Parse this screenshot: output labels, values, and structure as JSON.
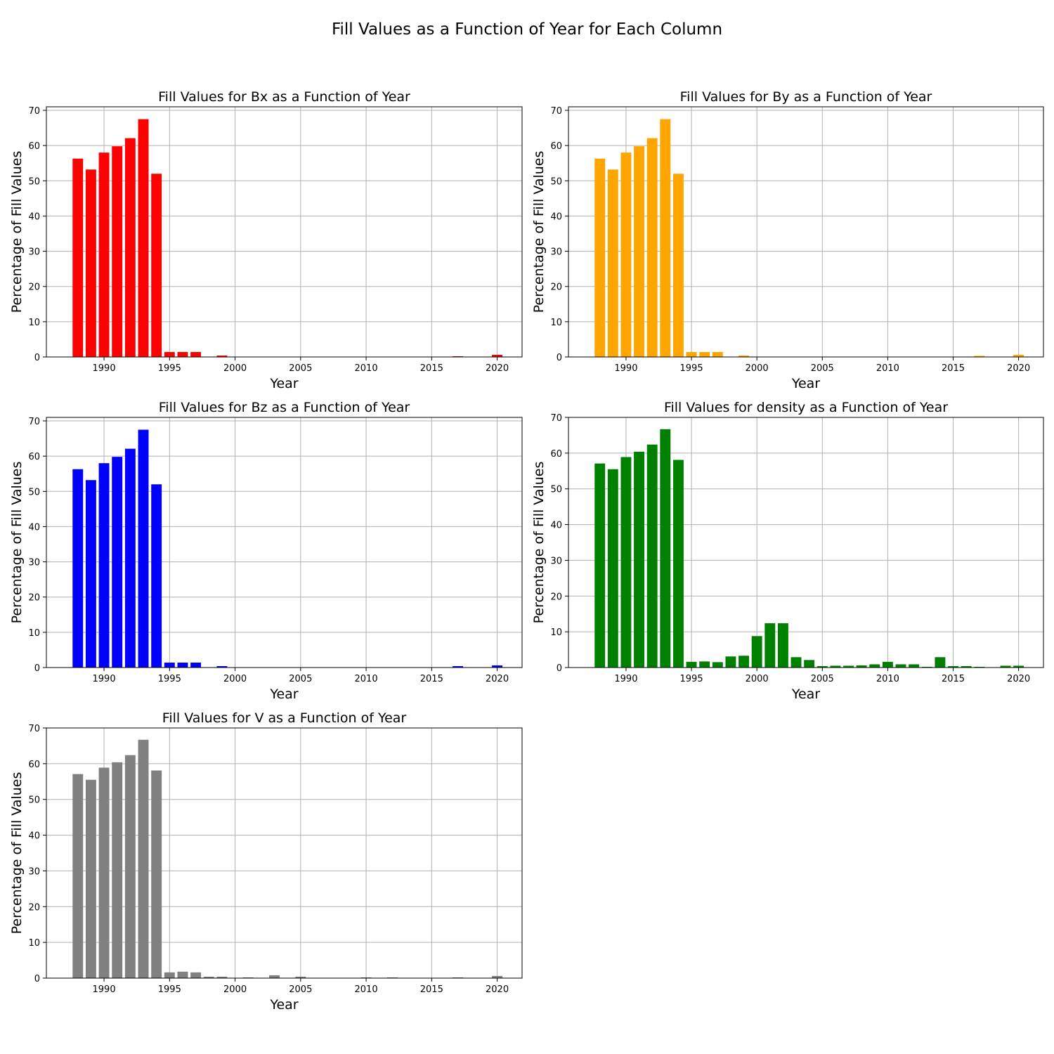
{
  "figure": {
    "suptitle": "Fill Values as a Function of Year for Each Column"
  },
  "chart_data": [
    {
      "type": "bar",
      "title": "Fill Values for Bx as a Function of Year",
      "xlabel": "Year",
      "ylabel": "Percentage of Fill Values",
      "xlim": [
        1985.6,
        2021.9
      ],
      "ylim": [
        0,
        71
      ],
      "xticks": [
        1990,
        1995,
        2000,
        2005,
        2010,
        2015,
        2020
      ],
      "yticks": [
        0,
        10,
        20,
        30,
        40,
        50,
        60,
        70
      ],
      "grid": true,
      "color": "#ff0000",
      "series": [
        {
          "x": [
            1988,
            1989,
            1990,
            1991,
            1992,
            1993,
            1994,
            1995,
            1996,
            1997,
            1999,
            2017,
            2020
          ],
          "values": [
            56.3,
            53.2,
            58.0,
            59.8,
            62.1,
            67.5,
            52.0,
            1.4,
            1.4,
            1.4,
            0.4,
            0.2,
            0.6
          ]
        }
      ]
    },
    {
      "type": "bar",
      "title": "Fill Values for By as a Function of Year",
      "xlabel": "Year",
      "ylabel": "Percentage of Fill Values",
      "xlim": [
        1985.6,
        2021.9
      ],
      "ylim": [
        0,
        71
      ],
      "xticks": [
        1990,
        1995,
        2000,
        2005,
        2010,
        2015,
        2020
      ],
      "yticks": [
        0,
        10,
        20,
        30,
        40,
        50,
        60,
        70
      ],
      "grid": true,
      "color": "#ffa500",
      "series": [
        {
          "x": [
            1988,
            1989,
            1990,
            1991,
            1992,
            1993,
            1994,
            1995,
            1996,
            1997,
            1999,
            2017,
            2020
          ],
          "values": [
            56.3,
            53.2,
            58.0,
            59.8,
            62.1,
            67.5,
            52.0,
            1.4,
            1.4,
            1.4,
            0.4,
            0.3,
            0.6
          ]
        }
      ]
    },
    {
      "type": "bar",
      "title": "Fill Values for Bz as a Function of Year",
      "xlabel": "Year",
      "ylabel": "Percentage of Fill Values",
      "xlim": [
        1985.6,
        2021.9
      ],
      "ylim": [
        0,
        71
      ],
      "xticks": [
        1990,
        1995,
        2000,
        2005,
        2010,
        2015,
        2020
      ],
      "yticks": [
        0,
        10,
        20,
        30,
        40,
        50,
        60,
        70
      ],
      "grid": true,
      "color": "#0000ff",
      "series": [
        {
          "x": [
            1988,
            1989,
            1990,
            1991,
            1992,
            1993,
            1994,
            1995,
            1996,
            1997,
            1999,
            2017,
            2020
          ],
          "values": [
            56.3,
            53.2,
            58.0,
            59.8,
            62.1,
            67.5,
            52.0,
            1.4,
            1.4,
            1.4,
            0.4,
            0.4,
            0.6
          ]
        }
      ]
    },
    {
      "type": "bar",
      "title": "Fill Values for density as a Function of Year",
      "xlabel": "Year",
      "ylabel": "Percentage of Fill Values",
      "xlim": [
        1985.6,
        2021.9
      ],
      "ylim": [
        0,
        70
      ],
      "xticks": [
        1990,
        1995,
        2000,
        2005,
        2010,
        2015,
        2020
      ],
      "yticks": [
        0,
        10,
        20,
        30,
        40,
        50,
        60,
        70
      ],
      "grid": true,
      "color": "#008000",
      "series": [
        {
          "x": [
            1988,
            1989,
            1990,
            1991,
            1992,
            1993,
            1994,
            1995,
            1996,
            1997,
            1998,
            1999,
            2000,
            2001,
            2002,
            2003,
            2004,
            2005,
            2006,
            2007,
            2008,
            2009,
            2010,
            2011,
            2012,
            2013,
            2014,
            2015,
            2016,
            2017,
            2019,
            2020
          ],
          "values": [
            57.1,
            55.5,
            58.9,
            60.4,
            62.4,
            66.7,
            58.1,
            1.6,
            1.7,
            1.5,
            3.1,
            3.3,
            8.8,
            12.4,
            12.4,
            2.9,
            2.1,
            0.4,
            0.5,
            0.5,
            0.6,
            0.9,
            1.6,
            0.9,
            0.9,
            0.2,
            2.9,
            0.4,
            0.4,
            0.2,
            0.5,
            0.5
          ]
        }
      ]
    },
    {
      "type": "bar",
      "title": "Fill Values for V as a Function of Year",
      "xlabel": "Year",
      "ylabel": "Percentage of Fill Values",
      "xlim": [
        1985.6,
        2021.9
      ],
      "ylim": [
        0,
        70
      ],
      "xticks": [
        1990,
        1995,
        2000,
        2005,
        2010,
        2015,
        2020
      ],
      "yticks": [
        0,
        10,
        20,
        30,
        40,
        50,
        60,
        70
      ],
      "grid": true,
      "color": "#808080",
      "series": [
        {
          "x": [
            1988,
            1989,
            1990,
            1991,
            1992,
            1993,
            1994,
            1995,
            1996,
            1997,
            1998,
            1999,
            2001,
            2003,
            2005,
            2010,
            2012,
            2017,
            2020
          ],
          "values": [
            57.1,
            55.5,
            58.9,
            60.4,
            62.4,
            66.7,
            58.1,
            1.6,
            1.8,
            1.6,
            0.4,
            0.4,
            0.2,
            0.8,
            0.4,
            0.2,
            0.2,
            0.2,
            0.6
          ]
        }
      ]
    }
  ]
}
